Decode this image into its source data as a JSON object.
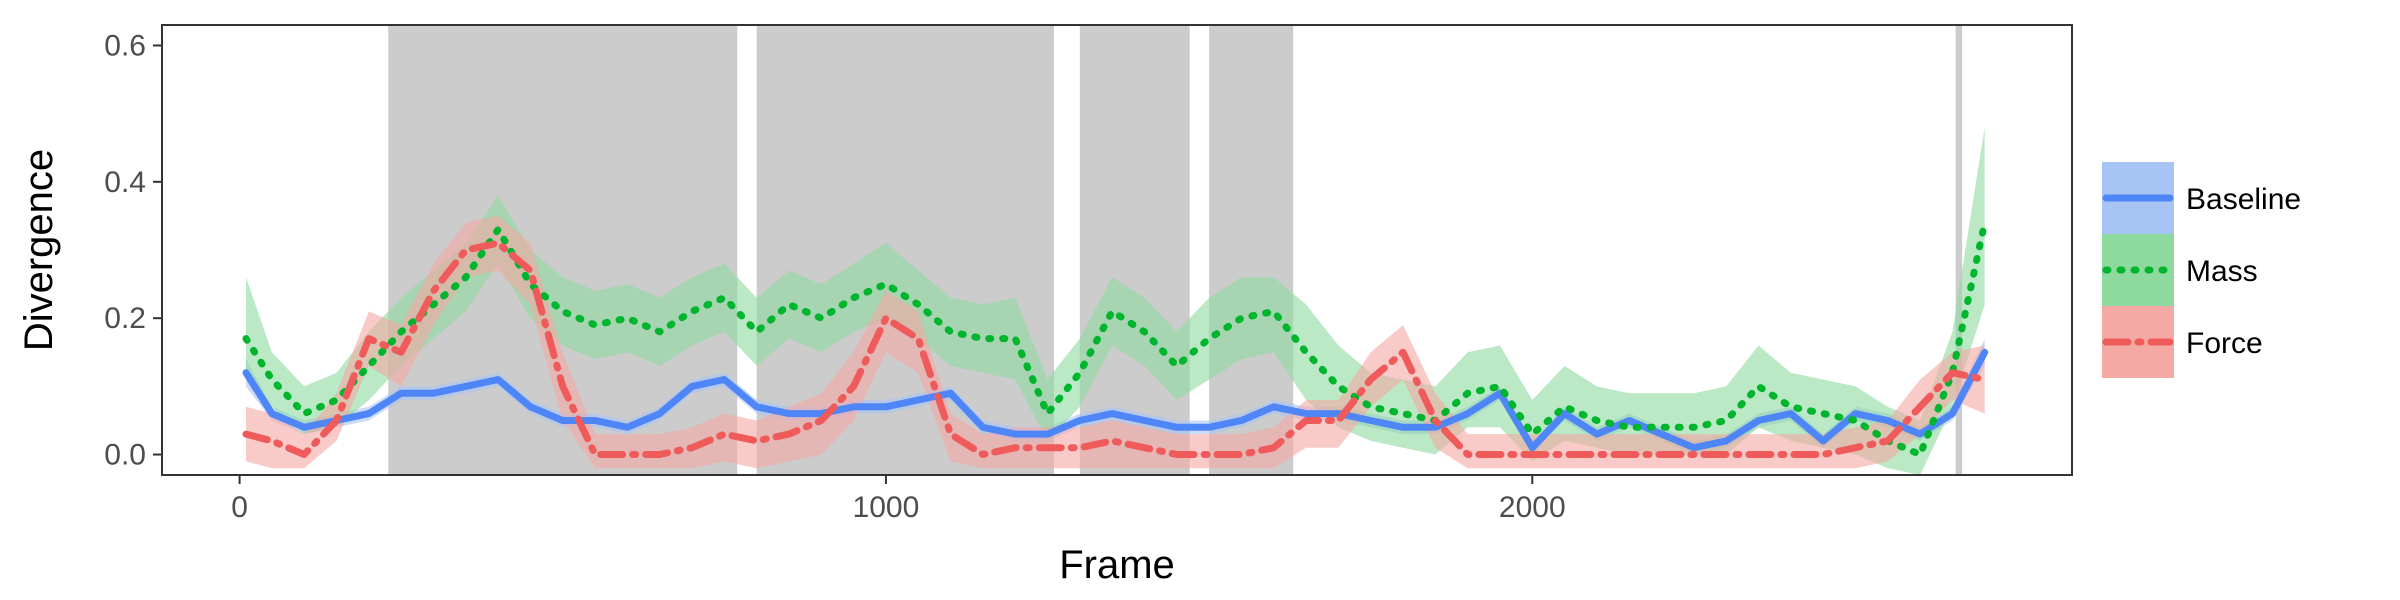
{
  "chart_data": {
    "type": "line",
    "xlabel": "Frame",
    "ylabel": "Divergence",
    "xlim": [
      -120,
      2835
    ],
    "ylim": [
      -0.03,
      0.63
    ],
    "x_ticks": [
      0,
      1000,
      2000
    ],
    "x_tick_labels": [
      "0",
      "1000",
      "2000"
    ],
    "y_ticks": [
      0.0,
      0.2,
      0.4,
      0.6
    ],
    "y_tick_labels": [
      "0.0",
      "0.2",
      "0.4",
      "0.6"
    ],
    "grid": false,
    "legend_position": "right",
    "shaded_regions": [
      [
        230,
        770
      ],
      [
        800,
        1260
      ],
      [
        1300,
        1470
      ],
      [
        1500,
        1630
      ],
      [
        2655,
        2665
      ]
    ],
    "shaded_color": "#cccccc",
    "series": [
      {
        "name": "Baseline",
        "color": "#4f86f7",
        "band_color": "#a8c4f5",
        "line_style": "solid",
        "x": [
          10,
          50,
          100,
          150,
          200,
          250,
          300,
          350,
          400,
          450,
          500,
          550,
          600,
          650,
          700,
          750,
          800,
          850,
          900,
          950,
          1000,
          1050,
          1100,
          1150,
          1200,
          1250,
          1300,
          1350,
          1400,
          1450,
          1500,
          1550,
          1600,
          1650,
          1700,
          1750,
          1800,
          1850,
          1900,
          1950,
          2000,
          2050,
          2100,
          2150,
          2200,
          2250,
          2300,
          2350,
          2400,
          2450,
          2500,
          2550,
          2600,
          2650,
          2700
        ],
        "values": [
          0.12,
          0.06,
          0.04,
          0.05,
          0.06,
          0.09,
          0.09,
          0.1,
          0.11,
          0.07,
          0.05,
          0.05,
          0.04,
          0.06,
          0.1,
          0.11,
          0.07,
          0.06,
          0.06,
          0.07,
          0.07,
          0.08,
          0.09,
          0.04,
          0.03,
          0.03,
          0.05,
          0.06,
          0.05,
          0.04,
          0.04,
          0.05,
          0.07,
          0.06,
          0.06,
          0.05,
          0.04,
          0.04,
          0.06,
          0.09,
          0.01,
          0.06,
          0.03,
          0.05,
          0.03,
          0.01,
          0.02,
          0.05,
          0.06,
          0.02,
          0.06,
          0.05,
          0.03,
          0.06,
          0.15
        ],
        "lower": [
          0.1,
          0.05,
          0.03,
          0.04,
          0.05,
          0.08,
          0.08,
          0.09,
          0.1,
          0.06,
          0.04,
          0.04,
          0.03,
          0.05,
          0.09,
          0.1,
          0.06,
          0.05,
          0.05,
          0.06,
          0.06,
          0.07,
          0.08,
          0.03,
          0.02,
          0.02,
          0.04,
          0.05,
          0.04,
          0.03,
          0.03,
          0.04,
          0.06,
          0.05,
          0.05,
          0.04,
          0.03,
          0.03,
          0.05,
          0.08,
          0.0,
          0.05,
          0.02,
          0.04,
          0.02,
          0.0,
          0.01,
          0.04,
          0.05,
          0.01,
          0.05,
          0.04,
          0.02,
          0.05,
          0.13
        ],
        "upper": [
          0.14,
          0.07,
          0.05,
          0.06,
          0.07,
          0.1,
          0.1,
          0.11,
          0.12,
          0.08,
          0.06,
          0.06,
          0.05,
          0.07,
          0.11,
          0.12,
          0.08,
          0.07,
          0.07,
          0.08,
          0.08,
          0.09,
          0.1,
          0.05,
          0.04,
          0.04,
          0.06,
          0.07,
          0.06,
          0.05,
          0.05,
          0.06,
          0.08,
          0.07,
          0.07,
          0.06,
          0.05,
          0.05,
          0.07,
          0.1,
          0.02,
          0.07,
          0.04,
          0.06,
          0.04,
          0.02,
          0.03,
          0.06,
          0.07,
          0.03,
          0.07,
          0.06,
          0.04,
          0.07,
          0.17
        ]
      },
      {
        "name": "Mass",
        "color": "#00b52e",
        "band_color": "#8ed99e",
        "line_style": "dotted",
        "x": [
          10,
          50,
          100,
          150,
          200,
          250,
          300,
          350,
          400,
          450,
          500,
          550,
          600,
          650,
          700,
          750,
          800,
          850,
          900,
          950,
          1000,
          1050,
          1100,
          1150,
          1200,
          1250,
          1300,
          1350,
          1400,
          1450,
          1500,
          1550,
          1600,
          1650,
          1700,
          1750,
          1800,
          1850,
          1900,
          1950,
          2000,
          2050,
          2100,
          2150,
          2200,
          2250,
          2300,
          2350,
          2400,
          2450,
          2500,
          2550,
          2600,
          2650,
          2700
        ],
        "values": [
          0.17,
          0.11,
          0.06,
          0.08,
          0.13,
          0.18,
          0.22,
          0.26,
          0.33,
          0.25,
          0.21,
          0.19,
          0.2,
          0.18,
          0.21,
          0.23,
          0.18,
          0.22,
          0.2,
          0.23,
          0.25,
          0.22,
          0.18,
          0.17,
          0.17,
          0.06,
          0.12,
          0.21,
          0.18,
          0.13,
          0.17,
          0.2,
          0.21,
          0.15,
          0.1,
          0.07,
          0.06,
          0.05,
          0.09,
          0.1,
          0.03,
          0.07,
          0.05,
          0.04,
          0.04,
          0.04,
          0.05,
          0.1,
          0.07,
          0.06,
          0.05,
          0.02,
          0.0,
          0.12,
          0.34
        ],
        "lower": [
          0.12,
          0.07,
          0.03,
          0.04,
          0.08,
          0.13,
          0.17,
          0.21,
          0.28,
          0.2,
          0.16,
          0.14,
          0.15,
          0.13,
          0.16,
          0.18,
          0.13,
          0.17,
          0.15,
          0.18,
          0.2,
          0.17,
          0.13,
          0.12,
          0.11,
          0.02,
          0.07,
          0.16,
          0.13,
          0.08,
          0.11,
          0.14,
          0.15,
          0.08,
          0.04,
          0.02,
          0.01,
          0.0,
          0.04,
          0.04,
          -0.01,
          0.02,
          0.01,
          0.0,
          0.0,
          0.0,
          0.0,
          0.04,
          0.02,
          0.01,
          0.0,
          -0.02,
          -0.03,
          0.07,
          0.22
        ],
        "upper": [
          0.26,
          0.15,
          0.1,
          0.12,
          0.18,
          0.23,
          0.27,
          0.31,
          0.38,
          0.3,
          0.26,
          0.24,
          0.25,
          0.23,
          0.26,
          0.28,
          0.23,
          0.27,
          0.25,
          0.28,
          0.31,
          0.27,
          0.23,
          0.22,
          0.23,
          0.11,
          0.17,
          0.26,
          0.23,
          0.18,
          0.23,
          0.26,
          0.26,
          0.22,
          0.16,
          0.12,
          0.11,
          0.1,
          0.15,
          0.16,
          0.08,
          0.13,
          0.1,
          0.09,
          0.09,
          0.09,
          0.1,
          0.16,
          0.12,
          0.11,
          0.1,
          0.07,
          0.05,
          0.18,
          0.48
        ]
      },
      {
        "name": "Force",
        "color": "#ef5a5a",
        "band_color": "#f4a9a5",
        "line_style": "dotdash",
        "x": [
          10,
          50,
          100,
          150,
          200,
          250,
          300,
          350,
          400,
          450,
          500,
          550,
          600,
          650,
          700,
          750,
          800,
          850,
          900,
          950,
          1000,
          1050,
          1100,
          1150,
          1200,
          1250,
          1300,
          1350,
          1400,
          1450,
          1500,
          1550,
          1600,
          1650,
          1700,
          1750,
          1800,
          1850,
          1900,
          1950,
          2000,
          2050,
          2100,
          2150,
          2200,
          2250,
          2300,
          2350,
          2400,
          2450,
          2500,
          2550,
          2600,
          2650,
          2700
        ],
        "values": [
          0.03,
          0.02,
          0.0,
          0.05,
          0.17,
          0.15,
          0.24,
          0.3,
          0.31,
          0.27,
          0.1,
          0.0,
          0.0,
          0.0,
          0.01,
          0.03,
          0.02,
          0.03,
          0.05,
          0.1,
          0.2,
          0.17,
          0.03,
          0.0,
          0.01,
          0.01,
          0.01,
          0.02,
          0.01,
          0.0,
          0.0,
          0.0,
          0.01,
          0.05,
          0.05,
          0.11,
          0.15,
          0.05,
          0.0,
          0.0,
          0.0,
          0.0,
          0.0,
          0.0,
          0.0,
          0.0,
          0.0,
          0.0,
          0.0,
          0.0,
          0.01,
          0.02,
          0.07,
          0.12,
          0.11
        ],
        "lower": [
          -0.01,
          -0.02,
          -0.02,
          0.02,
          0.13,
          0.1,
          0.19,
          0.26,
          0.27,
          0.22,
          0.05,
          -0.02,
          -0.02,
          -0.02,
          -0.02,
          -0.01,
          -0.02,
          -0.01,
          0.0,
          0.05,
          0.15,
          0.12,
          -0.01,
          -0.02,
          -0.02,
          -0.02,
          -0.02,
          -0.02,
          -0.02,
          -0.02,
          -0.02,
          -0.02,
          -0.02,
          0.01,
          0.01,
          0.07,
          0.11,
          0.01,
          -0.02,
          -0.02,
          -0.02,
          -0.02,
          -0.02,
          -0.02,
          -0.02,
          -0.02,
          -0.02,
          -0.02,
          -0.02,
          -0.02,
          -0.02,
          -0.01,
          0.03,
          0.08,
          0.06
        ],
        "upper": [
          0.07,
          0.06,
          0.03,
          0.09,
          0.21,
          0.19,
          0.28,
          0.34,
          0.35,
          0.31,
          0.15,
          0.03,
          0.03,
          0.03,
          0.04,
          0.06,
          0.05,
          0.07,
          0.09,
          0.15,
          0.24,
          0.21,
          0.06,
          0.03,
          0.04,
          0.04,
          0.04,
          0.05,
          0.04,
          0.03,
          0.03,
          0.03,
          0.04,
          0.08,
          0.08,
          0.15,
          0.19,
          0.09,
          0.03,
          0.03,
          0.03,
          0.03,
          0.03,
          0.03,
          0.03,
          0.03,
          0.03,
          0.03,
          0.03,
          0.03,
          0.04,
          0.05,
          0.11,
          0.15,
          0.16
        ]
      }
    ]
  }
}
